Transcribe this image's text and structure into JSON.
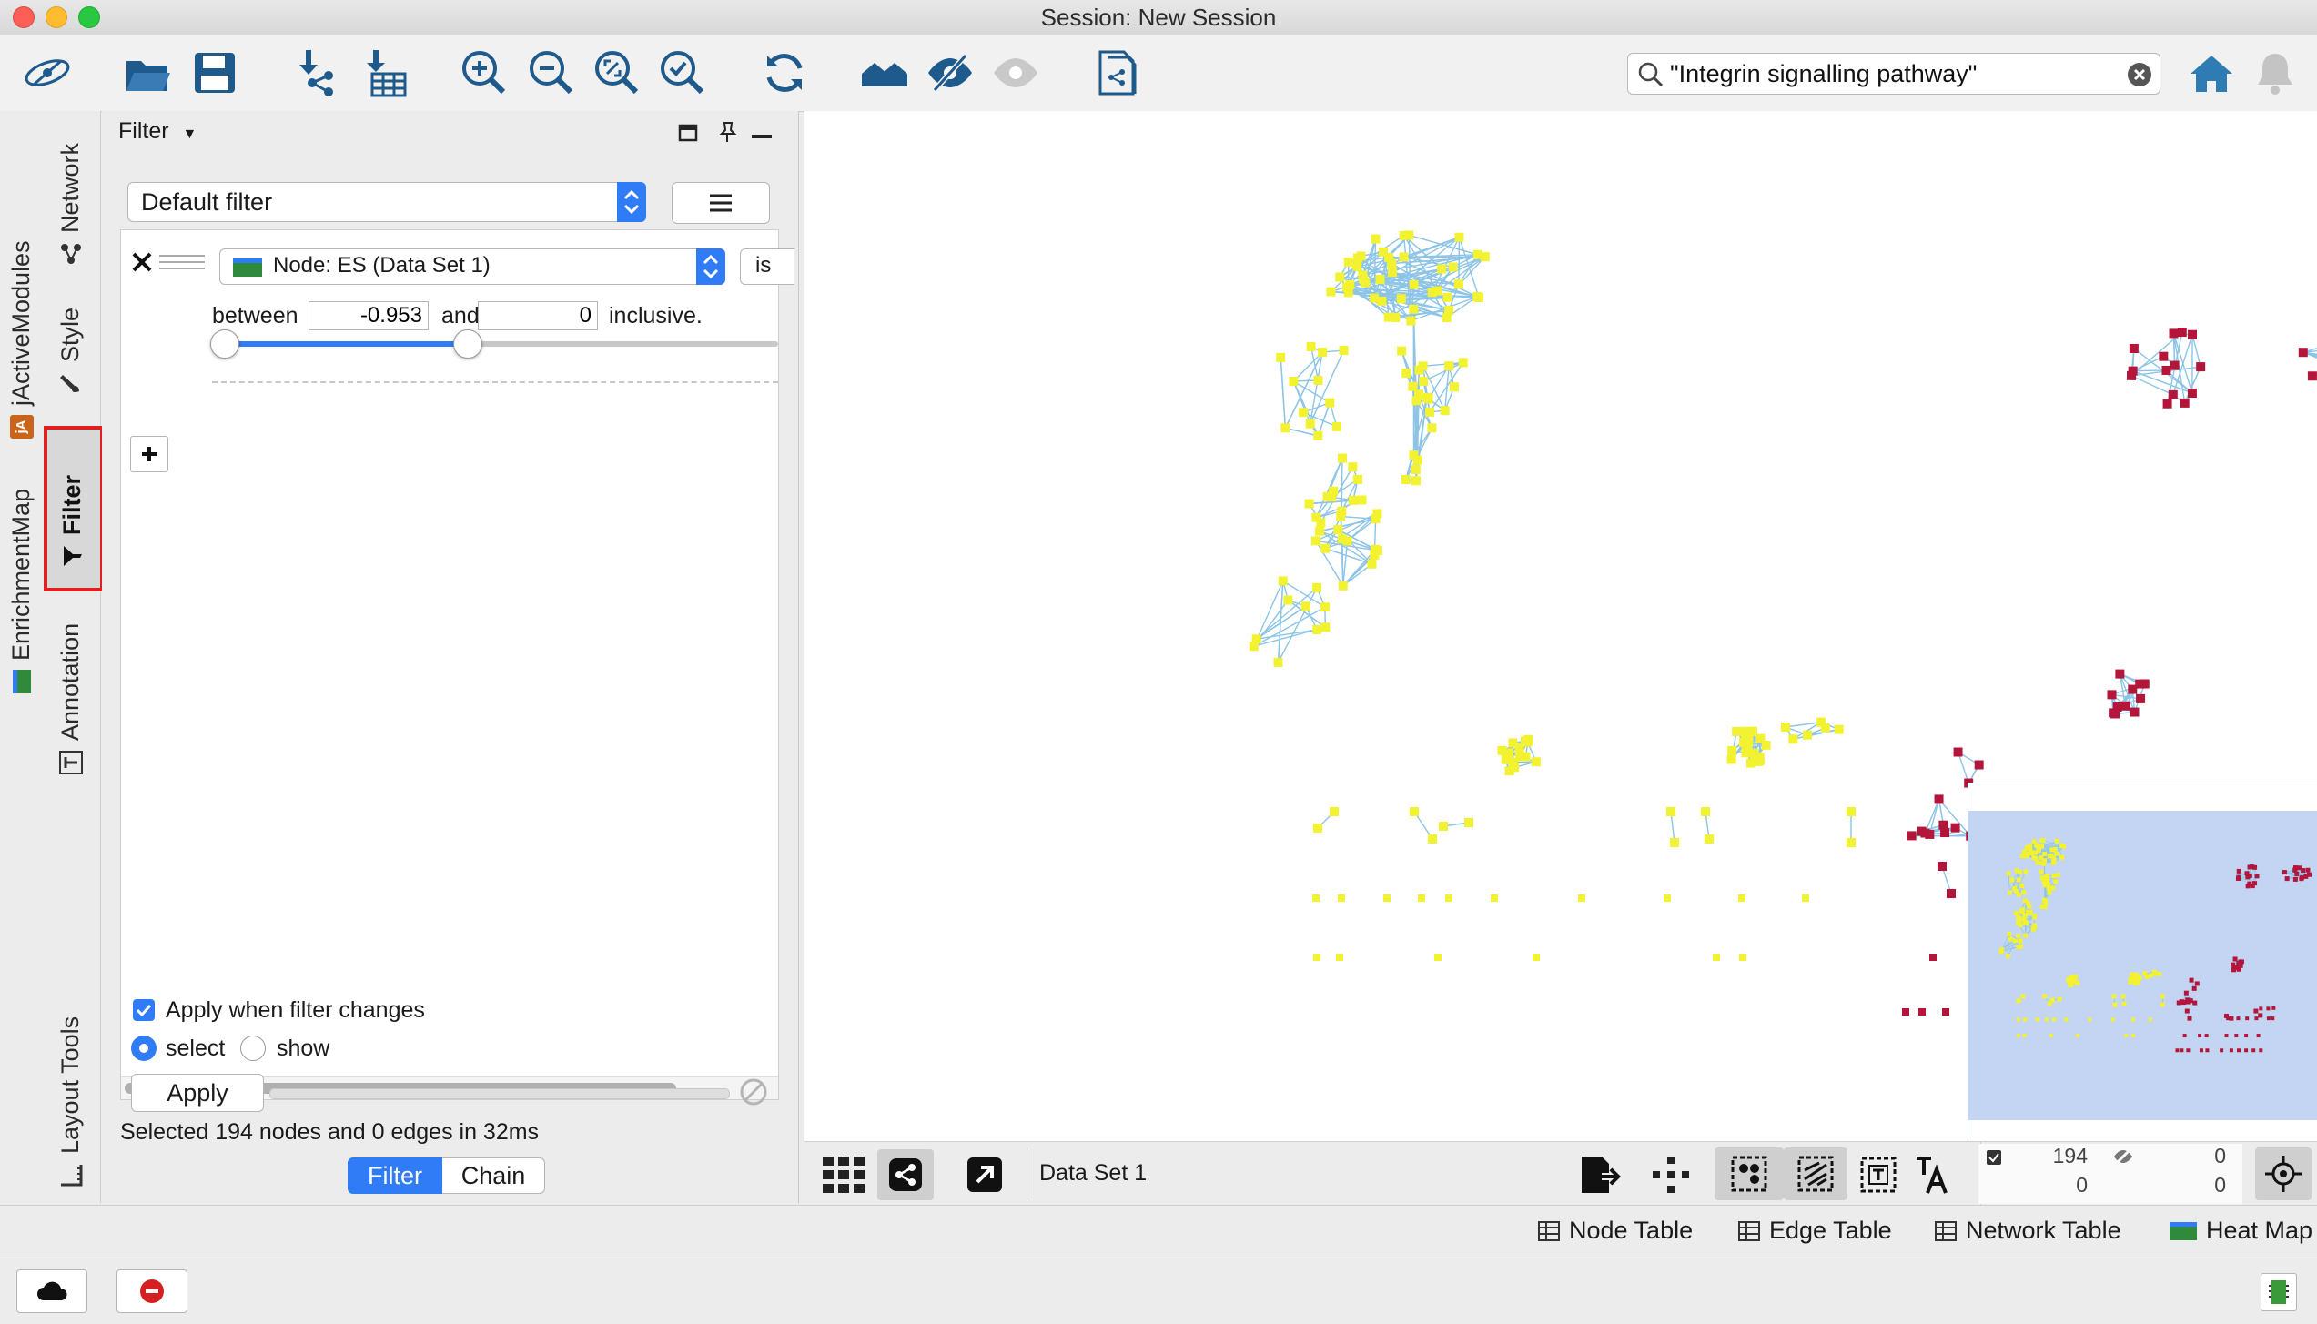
{
  "window": {
    "title": "Session: New Session"
  },
  "search": {
    "value": "\"Integrin signalling pathway\""
  },
  "vtabs": {
    "network": "Network",
    "style": "Style",
    "filter": "Filter",
    "annotation": "Annotation",
    "jactive": "jActiveModules",
    "enrichment": "EnrichmentMap",
    "layout_tools": "Layout Tools"
  },
  "panel": {
    "header": "Filter",
    "filter_select": "Default filter",
    "condition": {
      "column": "Node: ES (Data Set 1)",
      "operator_partial": "is",
      "between_label": "between",
      "min": "-0.953",
      "and_label": "and",
      "max": "0",
      "inclusive_label": "inclusive.",
      "slider_low": 0.0,
      "slider_high": 0.45
    },
    "apply_when_changes": "Apply when filter changes",
    "apply_when_changes_checked": true,
    "mode_select": "select",
    "mode_show": "show",
    "mode_selected": "select",
    "apply_button": "Apply",
    "status": "Selected 194 nodes and 0 edges in 32ms",
    "tab_filter": "Filter",
    "tab_chain": "Chain"
  },
  "network_view": {
    "dataset_label": "Data Set 1",
    "nodes_selected": "194",
    "nodes_hidden": "0",
    "edges_selected": "0",
    "edges_hidden": "0"
  },
  "bottom_tabs": {
    "node_table": "Node Table",
    "edge_table": "Edge Table",
    "network_table": "Network Table",
    "heat_map": "Heat Map"
  },
  "colors": {
    "accent": "#2f7cf6",
    "toolbar_icon": "#1f5a8c",
    "node_yellow": "#f2f230",
    "node_red": "#b3163a",
    "edge": "#8cc4e8",
    "highlight": "#e02020"
  }
}
